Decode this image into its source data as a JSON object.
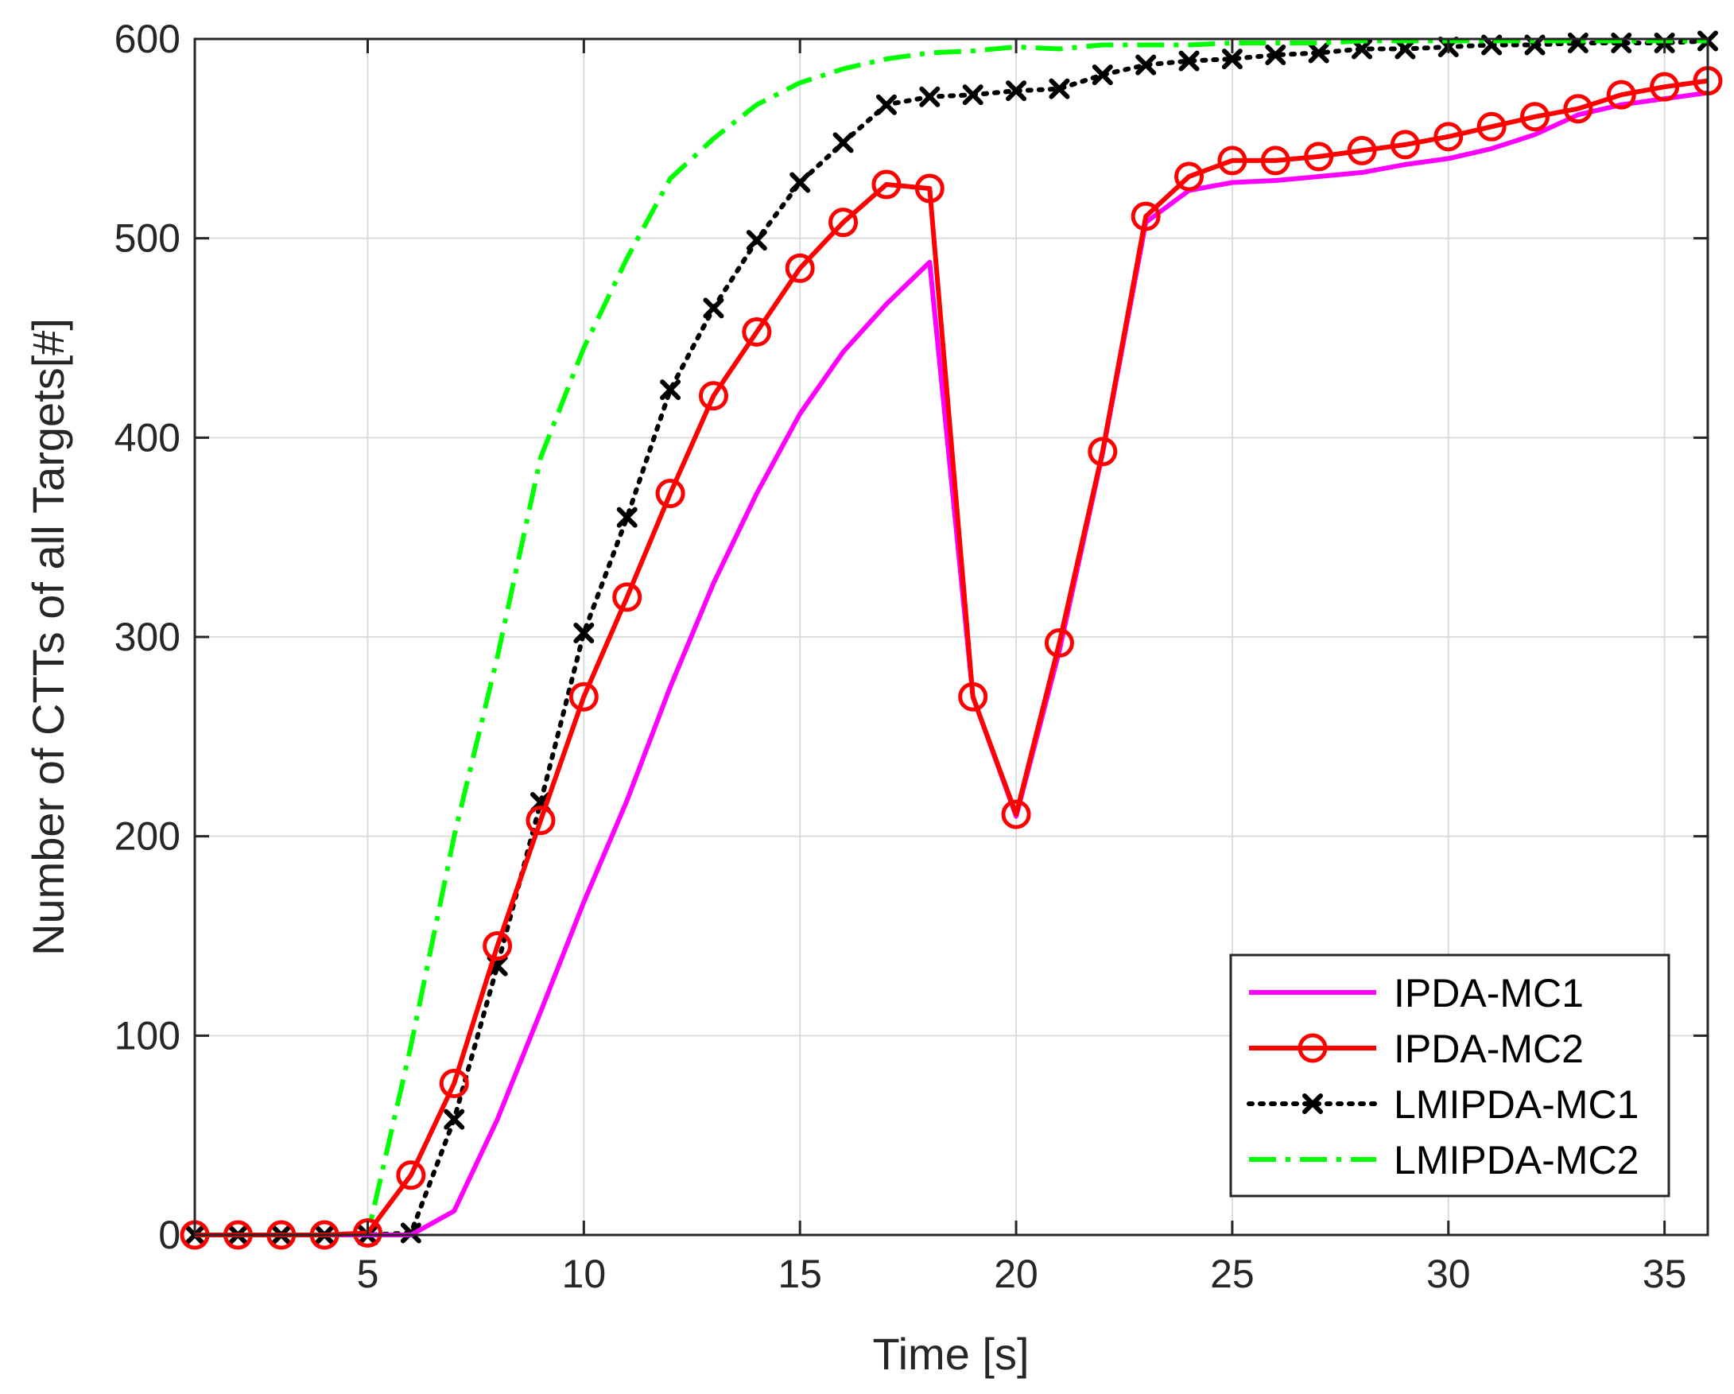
{
  "chart_data": {
    "type": "line",
    "title": "",
    "xlabel": "Time [s]",
    "ylabel": "Number of CTTs of all Targets[#]",
    "xlim": [
      1,
      36
    ],
    "ylim": [
      0,
      600
    ],
    "xticks": [
      5,
      10,
      15,
      20,
      25,
      30,
      35
    ],
    "yticks": [
      0,
      100,
      200,
      300,
      400,
      500,
      600
    ],
    "grid": true,
    "legend_position": "bottom-right",
    "x": [
      1,
      2,
      3,
      4,
      5,
      6,
      7,
      8,
      9,
      10,
      11,
      12,
      13,
      14,
      15,
      16,
      17,
      18,
      19,
      20,
      21,
      22,
      23,
      24,
      25,
      26,
      27,
      28,
      29,
      30,
      31,
      32,
      33,
      34,
      35,
      36
    ],
    "series": [
      {
        "name": "IPDA-MC1",
        "color": "#ff00ff",
        "style": "solid",
        "marker": "none",
        "values": [
          0,
          0,
          0,
          0,
          0,
          0,
          12,
          58,
          112,
          167,
          218,
          275,
          327,
          372,
          412,
          443,
          467,
          488,
          270,
          210,
          293,
          392,
          508,
          524,
          528,
          529,
          531,
          533,
          537,
          540,
          545,
          552,
          562,
          567,
          570,
          573
        ]
      },
      {
        "name": "IPDA-MC2",
        "color": "#ff0000",
        "style": "solid",
        "marker": "circle",
        "values": [
          0,
          0,
          0,
          0,
          1,
          30,
          76,
          145,
          208,
          270,
          320,
          372,
          421,
          453,
          485,
          508,
          527,
          525,
          270,
          211,
          297,
          393,
          511,
          531,
          539,
          539,
          541,
          544,
          547,
          551,
          556,
          561,
          565,
          572,
          576,
          579
        ]
      },
      {
        "name": "LMIPDA-MC1",
        "color": "#000000",
        "style": "dotted",
        "marker": "x",
        "values": [
          0,
          0,
          0,
          0,
          0,
          1,
          58,
          135,
          217,
          302,
          360,
          424,
          465,
          499,
          528,
          548,
          567,
          571,
          572,
          574,
          575,
          582,
          587,
          589,
          590,
          592,
          593,
          595,
          595,
          596,
          597,
          597,
          598,
          598,
          598,
          599
        ]
      },
      {
        "name": "LMIPDA-MC2",
        "color": "#00ff00",
        "style": "dashdot",
        "marker": "none",
        "values": [
          0,
          0,
          0,
          0,
          0,
          95,
          200,
          290,
          390,
          445,
          490,
          530,
          550,
          567,
          578,
          585,
          590,
          593,
          594,
          596,
          595,
          597,
          597,
          597,
          598,
          598,
          598,
          599,
          599,
          599,
          599,
          599,
          599,
          599,
          599,
          599
        ]
      }
    ]
  }
}
